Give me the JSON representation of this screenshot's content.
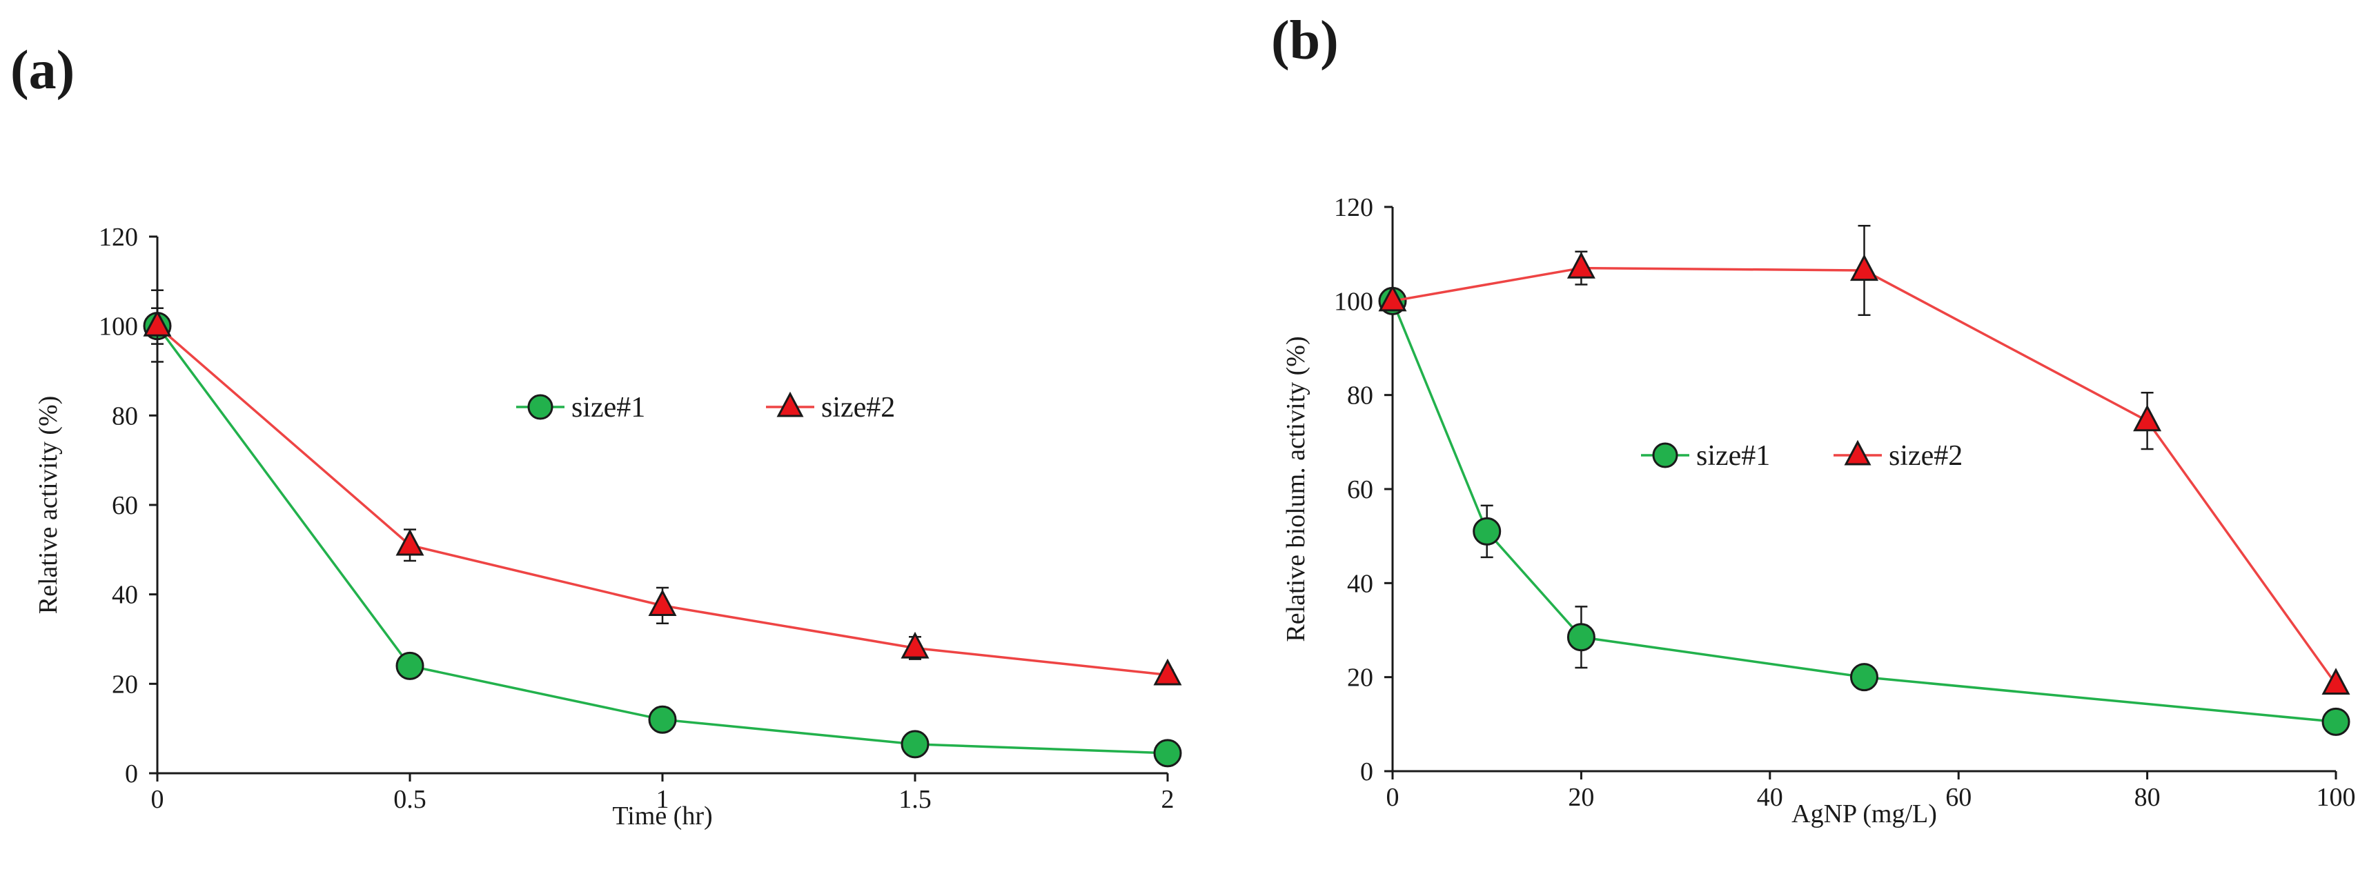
{
  "colors": {
    "series1_fill": "#22b14c",
    "series1_line": "#22b14c",
    "series2_fill": "#e8141a",
    "series2_line": "#ee4444",
    "axis": "#1a1a1a",
    "marker_edge": "#1a1a1a"
  },
  "chart_data": [
    {
      "panel_label": "(a)",
      "panel_letter": "a",
      "type": "line",
      "title": "",
      "xlabel": "Time (hr)",
      "ylabel": "Relative activity (%)",
      "xlim": [
        0,
        2
      ],
      "ylim": [
        0,
        120
      ],
      "x_ticks": [
        0,
        0.5,
        1,
        1.5,
        2
      ],
      "x_tick_labels": [
        "0",
        "0.5",
        "1",
        "1.5",
        "2"
      ],
      "y_ticks": [
        0,
        20,
        40,
        60,
        80,
        100,
        120
      ],
      "y_tick_labels": [
        "0",
        "20",
        "40",
        "60",
        "80",
        "100",
        "120"
      ],
      "grid": false,
      "legend_position": "center-right",
      "series": [
        {
          "name": "size#1",
          "marker": "circle",
          "color_key": "series1",
          "x": [
            0,
            0.5,
            1,
            1.5,
            2
          ],
          "values": [
            100,
            24,
            12,
            6.5,
            4.5
          ],
          "errors": [
            8,
            0,
            0,
            0,
            0
          ]
        },
        {
          "name": "size#2",
          "marker": "triangle",
          "color_key": "series2",
          "x": [
            0,
            0.5,
            1,
            1.5,
            2
          ],
          "values": [
            100,
            51,
            37.5,
            28,
            22
          ],
          "errors": [
            4,
            3.5,
            4,
            2.5,
            1
          ]
        }
      ]
    },
    {
      "panel_label": "(b)",
      "panel_letter": "b",
      "type": "line",
      "title": "",
      "xlabel": "AgNP (mg/L)",
      "ylabel": "Relative biolum. activity (%)",
      "xlim": [
        0,
        100
      ],
      "ylim": [
        0,
        120
      ],
      "x_ticks": [
        0,
        20,
        40,
        60,
        80,
        100
      ],
      "x_tick_labels": [
        "0",
        "20",
        "40",
        "60",
        "80",
        "100"
      ],
      "y_ticks": [
        0,
        20,
        40,
        60,
        80,
        100,
        120
      ],
      "y_tick_labels": [
        "0",
        "20",
        "40",
        "60",
        "80",
        "100",
        "120"
      ],
      "grid": false,
      "legend_position": "center",
      "series": [
        {
          "name": "size#1",
          "marker": "circle",
          "color_key": "series1",
          "x": [
            0,
            10,
            20,
            50,
            100
          ],
          "values": [
            100,
            51,
            28.5,
            20,
            10.5
          ],
          "errors": [
            0,
            5.5,
            6.5,
            0,
            0
          ]
        },
        {
          "name": "size#2",
          "marker": "triangle",
          "color_key": "series2",
          "x": [
            0,
            20,
            50,
            80,
            100
          ],
          "values": [
            100,
            107,
            106.5,
            74.5,
            18.5
          ],
          "errors": [
            0,
            3.5,
            9.5,
            6,
            0
          ]
        }
      ]
    }
  ]
}
